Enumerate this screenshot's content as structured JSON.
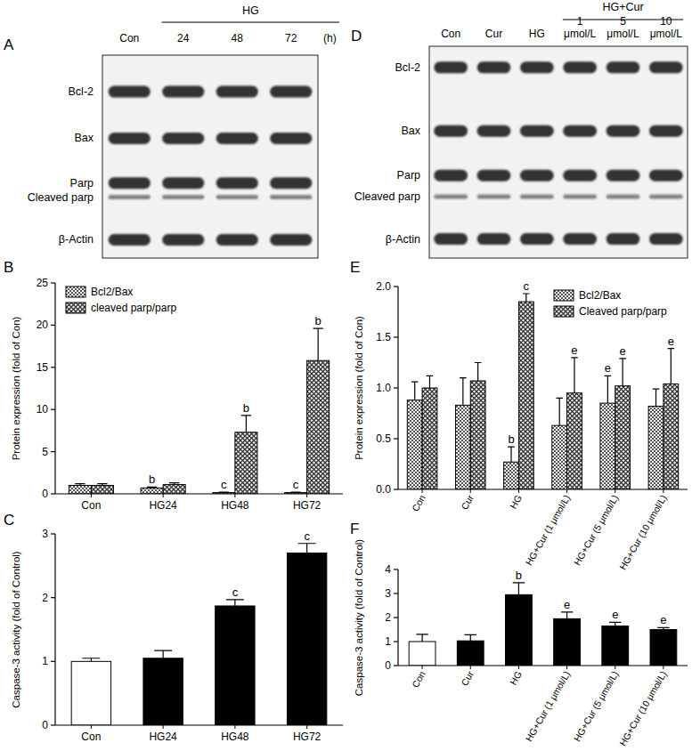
{
  "blots": [
    {
      "title": "A",
      "group_label": "HG",
      "columns": [
        "Con",
        "24",
        "48",
        "72"
      ],
      "unit": "(h)",
      "rows": [
        "Bcl-2",
        "Bax",
        "Parp",
        "Cleaved parp",
        "β-Actin"
      ]
    },
    {
      "title": "D",
      "group_label": "HG+Cur",
      "columns": [
        "Con",
        "Cur",
        "HG",
        "1 μmol/L",
        "5 μmol/L",
        "10 μmol/L"
      ],
      "rows": [
        "Bcl-2",
        "Bax",
        "Parp",
        "Cleaved parp",
        "β-Actin"
      ]
    }
  ],
  "chart_data": [
    {
      "type": "bar",
      "title": "B",
      "y_label": "Protein expression (fold of Con)",
      "categories": [
        "Con",
        "HG24",
        "HG48",
        "HG72"
      ],
      "series": [
        {
          "name": "Bcl2/Bax",
          "color": "#555555",
          "values": [
            1,
            0.7,
            0.15,
            0.15
          ],
          "errors": [
            0.2,
            0.1,
            0.05,
            0.05
          ],
          "annotations": [
            null,
            "b",
            "c",
            "c"
          ]
        },
        {
          "name": "cleaved parp/parp",
          "color": "#333333",
          "values": [
            1,
            1.1,
            7.3,
            15.8
          ],
          "errors": [
            0.2,
            0.2,
            2.0,
            3.8
          ],
          "annotations": [
            null,
            null,
            "b",
            "b"
          ]
        }
      ],
      "ylim": [
        0,
        25
      ],
      "yticks": [
        0,
        5,
        10,
        15,
        20,
        25
      ],
      "legend": "upper left"
    },
    {
      "type": "bar",
      "title": "C",
      "y_label": "Caspase-3 activity (fold of Control)",
      "categories": [
        "Con",
        "HG24",
        "HG48",
        "HG72"
      ],
      "series": [
        {
          "values": [
            1.0,
            1.05,
            1.87,
            2.7
          ],
          "errors": [
            0.05,
            0.12,
            0.1,
            0.15
          ],
          "annotations": [
            null,
            null,
            "c",
            "c"
          ],
          "colors": [
            "#ffffff",
            "#000000",
            "#000000",
            "#000000"
          ]
        }
      ],
      "ylim": [
        0,
        3
      ],
      "yticks": [
        0,
        1,
        2,
        3
      ]
    },
    {
      "type": "bar",
      "title": "E",
      "y_label": "Protein expression (fold of Con)",
      "categories": [
        "Con",
        "Cur",
        "HG",
        "HG+Cur (1 μmol/L)",
        "HG+Cur (5 μmol/L)",
        "HG+Cur (10 μmol/L)"
      ],
      "series": [
        {
          "name": "Bcl2/Bax",
          "color": "#555555",
          "values": [
            0.88,
            0.83,
            0.27,
            0.63,
            0.85,
            0.82
          ],
          "errors": [
            0.18,
            0.27,
            0.15,
            0.27,
            0.27,
            0.17
          ],
          "annotations": [
            null,
            null,
            "b",
            null,
            "e",
            null
          ]
        },
        {
          "name": "Cleaved parp/parp",
          "color": "#333333",
          "values": [
            1.0,
            1.07,
            1.85,
            0.95,
            1.02,
            1.04
          ],
          "errors": [
            0.12,
            0.18,
            0.08,
            0.35,
            0.27,
            0.35
          ],
          "annotations": [
            null,
            null,
            "c",
            "e",
            "e",
            "e"
          ]
        }
      ],
      "ylim": [
        0,
        2
      ],
      "yticks": [
        {
          "value": 0,
          "label": "0.0"
        },
        {
          "value": 0.5,
          "label": "0.5"
        },
        {
          "value": 1,
          "label": "1.0"
        },
        {
          "value": 1.5,
          "label": "1.5"
        },
        {
          "value": 2,
          "label": "2.0"
        }
      ],
      "legend": "upper right"
    },
    {
      "type": "bar",
      "title": "F",
      "y_label": "Caspase-3 activity (fold of Control)",
      "categories": [
        "Con",
        "Cur",
        "HG",
        "HG+Cur (1 μmol/L)",
        "HG+Cur (5 μmol/L)",
        "HG+Cur (10 μmol/L)"
      ],
      "series": [
        {
          "values": [
            1.0,
            1.03,
            2.95,
            1.95,
            1.65,
            1.5
          ],
          "errors": [
            0.3,
            0.25,
            0.5,
            0.28,
            0.15,
            0.08
          ],
          "annotations": [
            null,
            null,
            "b",
            "e",
            "e",
            "e"
          ],
          "colors": [
            "#ffffff",
            "#000000",
            "#000000",
            "#000000",
            "#000000",
            "#000000"
          ]
        }
      ],
      "ylim": [
        0,
        4
      ],
      "yticks": [
        0,
        1,
        2,
        3,
        4
      ]
    }
  ]
}
